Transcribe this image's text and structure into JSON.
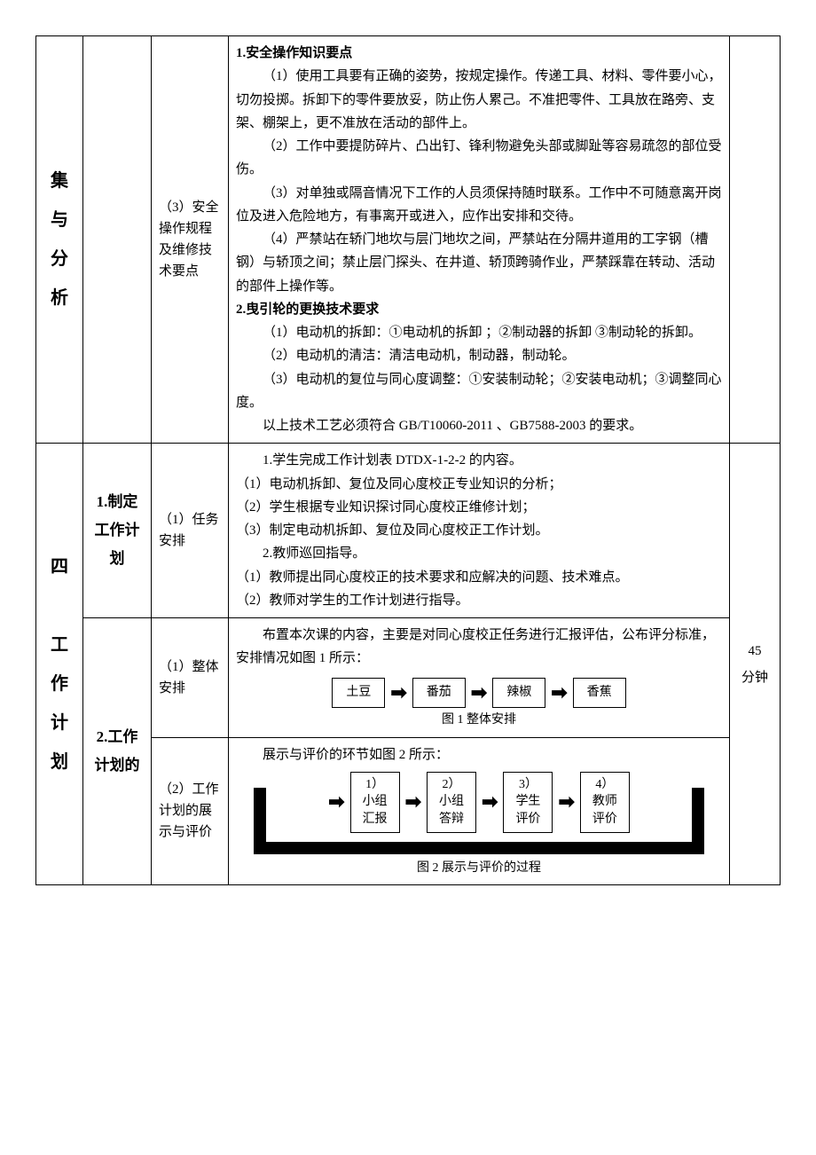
{
  "rows": {
    "r1": {
      "vlabel": "集\n与\n分\n析",
      "tlabel": "（3）安全操作规程及维修技术要点",
      "heading1": "1.安全操作知识要点",
      "p1": "（1）使用工具要有正确的姿势，按规定操作。传递工具、材料、零件要小心，切勿投掷。拆卸下的零件要放妥，防止伤人累己。不准把零件、工具放在路旁、支架、棚架上，更不准放在活动的部件上。",
      "p2": "（2）工作中要提防碎片、凸出钉、锋利物避免头部或脚趾等容易疏忽的部位受伤。",
      "p3": "（3）对单独或隔音情况下工作的人员须保持随时联系。工作中不可随意离开岗位及进入危险地方，有事离开或进入，应作出安排和交待。",
      "p4": "（4）严禁站在轿门地坎与层门地坎之间，严禁站在分隔井道用的工字钢（槽钢）与轿顶之间；禁止层门探头、在井道、轿顶跨骑作业，严禁踩靠在转动、活动的部件上操作等。",
      "heading2": "2.曳引轮的更换技术要求",
      "p5": "（1）电动机的拆卸：①电动机的拆卸 ；②制动器的拆卸 ③制动轮的拆卸。",
      "p6": "（2）电动机的清洁：清洁电动机，制动器，制动轮。",
      "p7": "（3）电动机的复位与同心度调整：①安装制动轮；②安装电动机；③调整同心度。",
      "p8": "以上技术工艺必须符合 GB/T10060-2011 、GB7588-2003 的要求。"
    },
    "r2": {
      "slabel": "1.制定工作计划",
      "tlabel": "（1）任务安排",
      "l1": "1.学生完成工作计划表 DTDX-1-2-2 的内容。",
      "l2": "（1）电动机拆卸、复位及同心度校正专业知识的分析；",
      "l3": "（2）学生根据专业知识探讨同心度校正维修计划；",
      "l4": "（3）制定电动机拆卸、复位及同心度校正工作计划。",
      "l5": "2.教师巡回指导。",
      "l6": "（1）教师提出同心度校正的技术要求和应解决的问题、技术难点。",
      "l7": "（2）教师对学生的工作计划进行指导。",
      "time": "45\n分钟"
    },
    "r3": {
      "vlabel": "四\n\n工\n作\n计\n划",
      "tlabel": "（1）整体安排",
      "intro": "布置本次课的内容，主要是对同心度校正任务进行汇报评估，公布评分标准，安排情况如图 1 所示：",
      "flow": [
        "土豆",
        "番茄",
        "辣椒",
        "香蕉"
      ],
      "caption": "图 1 整体安排"
    },
    "r4": {
      "slabel": "2.工作计划的",
      "tlabel": "（2）工作计划的展示与评价",
      "intro": "展示与评价的环节如图 2 所示：",
      "flow": [
        {
          "n": "1）",
          "t": "小组\n汇报"
        },
        {
          "n": "2）",
          "t": "小组\n答辩"
        },
        {
          "n": "3）",
          "t": "学生\n评价"
        },
        {
          "n": "4）",
          "t": "教师\n评价"
        }
      ],
      "caption": "图 2 展示与评价的过程"
    }
  },
  "style": {
    "font_family": "SimSun",
    "border_color": "#000000",
    "background": "#ffffff",
    "text_color": "#000000",
    "arrow_glyph": "➡"
  }
}
